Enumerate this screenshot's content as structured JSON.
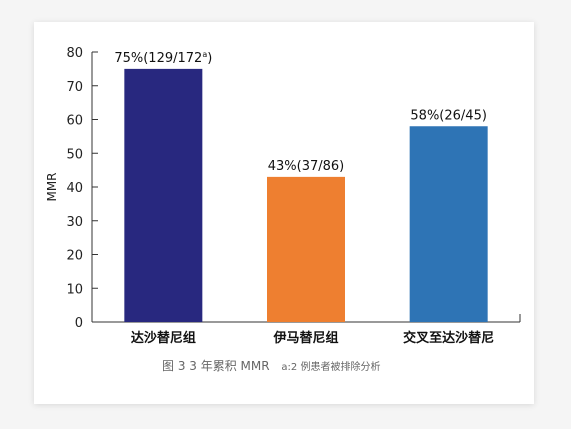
{
  "chart_data": {
    "type": "bar",
    "categories": [
      "达沙替尼组",
      "伊马替尼组",
      "交叉至达沙替尼"
    ],
    "values": [
      75,
      43,
      58
    ],
    "data_labels": [
      {
        "main": "75%(129/172",
        "sup": "a",
        "tail": ")"
      },
      {
        "main": "43%(37/86)",
        "sup": "",
        "tail": ""
      },
      {
        "main": "58%(26/45)",
        "sup": "",
        "tail": ""
      }
    ],
    "colors": [
      "#28287f",
      "#ee7f30",
      "#2e74b5"
    ],
    "ylabel": "MMR",
    "xlabel": "",
    "ylim": [
      0,
      80
    ],
    "yticks": [
      0,
      10,
      20,
      30,
      40,
      50,
      60,
      70,
      80
    ],
    "grid": false,
    "legend": "none"
  },
  "caption": {
    "main": "图 3  3 年累积 MMR",
    "note": "a:2 例患者被排除分析"
  }
}
